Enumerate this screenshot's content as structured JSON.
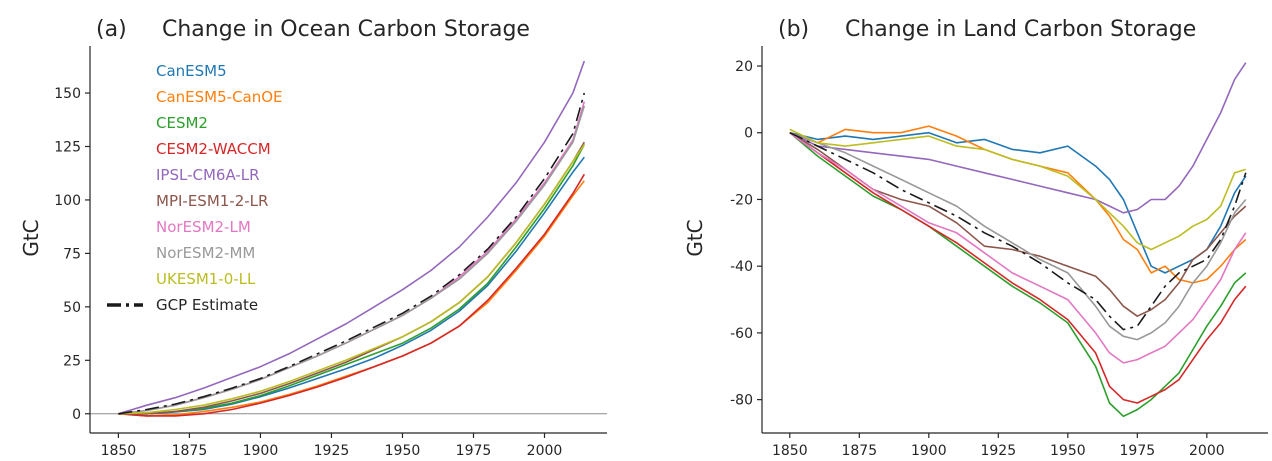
{
  "chart_data": [
    {
      "type": "line",
      "panel_label": "(a)",
      "title": "Change in Ocean Carbon Storage",
      "xlabel": "",
      "ylabel": "GtC",
      "xlim": [
        1840,
        2022
      ],
      "ylim": [
        -9,
        172
      ],
      "xticks": [
        1850,
        1875,
        1900,
        1925,
        1950,
        1975,
        2000
      ],
      "yticks": [
        0,
        25,
        50,
        75,
        100,
        125,
        150
      ],
      "zero_line": true,
      "legend": "upper-left",
      "x": [
        1850,
        1860,
        1870,
        1880,
        1890,
        1900,
        1910,
        1920,
        1930,
        1940,
        1950,
        1960,
        1970,
        1980,
        1990,
        2000,
        2010,
        2014
      ],
      "series": [
        {
          "name": "CanESM5",
          "color": "#1f77b4",
          "values": [
            0,
            0,
            0.8,
            2,
            4.5,
            8,
            12,
            16.5,
            21,
            26,
            32,
            39,
            48,
            60,
            76,
            94,
            113,
            120
          ]
        },
        {
          "name": "CanESM5-CanOE",
          "color": "#ff7f0e",
          "values": [
            0,
            -1,
            -0.5,
            1,
            3,
            5.5,
            9,
            13,
            17.5,
            22,
            27,
            33,
            41,
            52,
            67,
            83,
            102,
            109
          ]
        },
        {
          "name": "CESM2",
          "color": "#2ca02c",
          "values": [
            0,
            0,
            1,
            2.5,
            5,
            8.5,
            13,
            18,
            23,
            28,
            33,
            40,
            49,
            61,
            78,
            96,
            116,
            126
          ]
        },
        {
          "name": "CESM2-WACCM",
          "color": "#d62728",
          "values": [
            0,
            -1,
            -1,
            0,
            2,
            5,
            8.5,
            12.5,
            17,
            22,
            27,
            33,
            41,
            53,
            68,
            84,
            103,
            112
          ]
        },
        {
          "name": "IPSL-CM6A-LR",
          "color": "#9467bd",
          "values": [
            0,
            4,
            7.5,
            12,
            17,
            22,
            28,
            35,
            42,
            50,
            58,
            67,
            78,
            92,
            108,
            127,
            150,
            165
          ]
        },
        {
          "name": "MPI-ESM1-2-LR",
          "color": "#8c564b",
          "values": [
            0,
            0,
            1,
            3,
            6,
            9.5,
            14,
            19,
            24,
            30,
            36,
            43,
            52,
            64,
            80,
            98,
            118,
            127
          ]
        },
        {
          "name": "NorESM2-LM",
          "color": "#e377c2",
          "values": [
            0,
            1.5,
            4,
            7.5,
            11.5,
            16,
            21.5,
            27,
            33,
            39.5,
            46,
            54,
            64,
            76,
            91,
            108,
            128,
            146
          ]
        },
        {
          "name": "NorESM2-MM",
          "color": "#999999",
          "values": [
            0,
            1.5,
            4,
            7.5,
            11.5,
            16,
            21.5,
            27,
            33,
            39.5,
            46,
            54,
            63,
            75,
            90,
            107,
            127,
            144
          ]
        },
        {
          "name": "UKESM1-0-LL",
          "color": "#bcbd22",
          "values": [
            0,
            0.5,
            2,
            4,
            7,
            10.5,
            15,
            20,
            25,
            30.5,
            36,
            43,
            52,
            64,
            80,
            98,
            118,
            126
          ]
        },
        {
          "name": "GCP Estimate",
          "color": "#1a1a1a",
          "dash": true,
          "values": [
            0,
            2,
            4.5,
            8,
            12,
            16.5,
            22,
            28,
            34,
            40.5,
            47,
            55,
            65,
            77,
            92,
            110,
            131,
            150
          ]
        }
      ]
    },
    {
      "type": "line",
      "panel_label": "(b)",
      "title": "Change in Land Carbon Storage",
      "xlabel": "",
      "ylabel": "GtC",
      "xlim": [
        1840,
        2022
      ],
      "ylim": [
        -90,
        26
      ],
      "xticks": [
        1850,
        1875,
        1900,
        1925,
        1950,
        1975,
        2000
      ],
      "yticks": [
        -80,
        -60,
        -40,
        -20,
        0,
        20
      ],
      "zero_line": false,
      "x": [
        1850,
        1860,
        1870,
        1880,
        1890,
        1900,
        1910,
        1920,
        1930,
        1940,
        1950,
        1960,
        1965,
        1970,
        1975,
        1980,
        1985,
        1990,
        1995,
        2000,
        2005,
        2010,
        2014
      ],
      "series": [
        {
          "name": "CanESM5",
          "color": "#1f77b4",
          "values": [
            0,
            -2,
            -1,
            -2,
            -1,
            0,
            -3,
            -2,
            -5,
            -6,
            -4,
            -10,
            -14,
            -20,
            -30,
            -40,
            -42,
            -40,
            -38,
            -35,
            -28,
            -18,
            -13
          ]
        },
        {
          "name": "CanESM5-CanOE",
          "color": "#ff7f0e",
          "values": [
            0,
            -3,
            1,
            0,
            0,
            2,
            -1,
            -5,
            -8,
            -10,
            -12,
            -20,
            -25,
            -32,
            -35,
            -42,
            -40,
            -44,
            -45,
            -44,
            -40,
            -35,
            -32
          ]
        },
        {
          "name": "CESM2",
          "color": "#2ca02c",
          "values": [
            0,
            -7,
            -13,
            -19,
            -23,
            -28,
            -34,
            -40,
            -46,
            -51,
            -57,
            -70,
            -81,
            -85,
            -83,
            -80,
            -76,
            -72,
            -65,
            -58,
            -52,
            -45,
            -42
          ]
        },
        {
          "name": "CESM2-WACCM",
          "color": "#d62728",
          "values": [
            0,
            -6,
            -12,
            -18,
            -23,
            -28,
            -33,
            -39,
            -45,
            -50,
            -56,
            -66,
            -76,
            -80,
            -81,
            -79,
            -77,
            -74,
            -68,
            -62,
            -57,
            -50,
            -46
          ]
        },
        {
          "name": "IPSL-CM6A-LR",
          "color": "#9467bd",
          "values": [
            0,
            -4,
            -5,
            -6,
            -7,
            -8,
            -10,
            -12,
            -14,
            -16,
            -18,
            -20,
            -22,
            -24,
            -23,
            -20,
            -20,
            -16,
            -10,
            -2,
            6,
            16,
            21
          ]
        },
        {
          "name": "MPI-ESM1-2-LR",
          "color": "#8c564b",
          "values": [
            0,
            -5,
            -11,
            -17,
            -20,
            -22,
            -27,
            -34,
            -35,
            -37,
            -40,
            -43,
            -47,
            -52,
            -55,
            -53,
            -50,
            -45,
            -38,
            -35,
            -30,
            -25,
            -22
          ]
        },
        {
          "name": "NorESM2-LM",
          "color": "#e377c2",
          "values": [
            0,
            -6,
            -11,
            -17,
            -22,
            -27,
            -30,
            -36,
            -42,
            -46,
            -50,
            -60,
            -66,
            -69,
            -68,
            -66,
            -64,
            -60,
            -56,
            -50,
            -44,
            -35,
            -30
          ]
        },
        {
          "name": "NorESM2-MM",
          "color": "#999999",
          "values": [
            0,
            -3,
            -6,
            -10,
            -14,
            -18,
            -22,
            -28,
            -33,
            -38,
            -42,
            -52,
            -58,
            -61,
            -62,
            -60,
            -57,
            -52,
            -45,
            -40,
            -33,
            -24,
            -20
          ]
        },
        {
          "name": "UKESM1-0-LL",
          "color": "#bcbd22",
          "values": [
            1,
            -3,
            -4,
            -3,
            -2,
            -1,
            -4,
            -5,
            -8,
            -10,
            -13,
            -20,
            -24,
            -28,
            -33,
            -35,
            -33,
            -31,
            -28,
            -26,
            -22,
            -12,
            -11
          ]
        },
        {
          "name": "GCP Estimate",
          "color": "#1a1a1a",
          "dash": true,
          "values": [
            0,
            -4,
            -8,
            -12,
            -17,
            -21,
            -25,
            -30,
            -34,
            -39,
            -45,
            -50,
            -55,
            -59,
            -58,
            -52,
            -46,
            -42,
            -40,
            -38,
            -32,
            -22,
            -12
          ]
        }
      ]
    }
  ]
}
